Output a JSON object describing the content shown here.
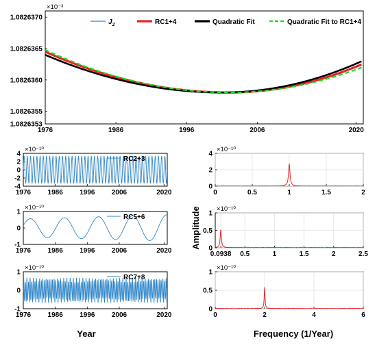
{
  "figure": {
    "xlabel": "Year",
    "xlabel_right": "Frequency (1/Year)",
    "ylabel_right": "Amplitude"
  },
  "chart_data": [
    {
      "id": "top",
      "type": "line",
      "exponent": "×10⁻³",
      "x": [
        1976,
        2020.5
      ],
      "xlim": [
        1976,
        2021
      ],
      "ylim": [
        1.0826353,
        1.0826371
      ],
      "xticks": [
        1976,
        1986,
        1996,
        2006,
        2020
      ],
      "yticks": [
        1.0826353,
        1.0826355,
        1.082636,
        1.0826365,
        1.082637
      ],
      "yticklabels": [
        "1.0826353",
        "1.0826355",
        "1.0826360",
        "1.0826365",
        "1.0826370"
      ],
      "legend": {
        "position": "top",
        "labels": [
          "J",
          "RC1+4",
          "Quadratic Fit",
          "Quadratic Fit to RC1+4"
        ],
        "j_sub": "2"
      },
      "series": [
        {
          "name": "J2",
          "color": "#2f86c8",
          "model": {
            "vertex_x": 2002,
            "min": 1.0826358,
            "a": 4.5e-10,
            "annual_amp": 2.3e-07,
            "noise_amp": 1e-07,
            "x_range": [
              1976,
              2020.8
            ]
          }
        },
        {
          "name": "RC1+4",
          "color": "#e8242b",
          "model": {
            "y0": 1.08263645,
            "vertex_x": 2002,
            "min": 1.0826358,
            "y1": 1.08263625,
            "x_range": [
              1976,
              2020.8
            ]
          }
        },
        {
          "name": "Quadratic Fit",
          "color": "#000000",
          "model": {
            "y0": 1.0826364,
            "vertex_x": 2001,
            "min": 1.0826358,
            "y1": 1.0826363,
            "x_range": [
              1976,
              2020.8
            ]
          }
        },
        {
          "name": "Quadratic Fit to RC1+4",
          "color": "#22dd22",
          "model": {
            "y0": 1.08263648,
            "vertex_x": 2002,
            "min": 1.0826358,
            "y1": 1.0826362,
            "x_range": [
              1976,
              2020.8
            ]
          }
        }
      ]
    },
    {
      "id": "rc23",
      "type": "line",
      "exponent": "×10⁻¹⁰",
      "xlim": [
        1976,
        2021
      ],
      "ylim": [
        -4,
        4
      ],
      "xticks": [
        1976,
        1986,
        1996,
        2006,
        2020
      ],
      "yticks": [
        4,
        2,
        0,
        -2,
        -4
      ],
      "legend": {
        "position": "top-right",
        "labels": [
          "RC2+3"
        ]
      },
      "series": [
        {
          "name": "RC2+3",
          "color": "#2f86c8",
          "model": {
            "amplitude": 3.3,
            "period_years": 1.0
          }
        }
      ]
    },
    {
      "id": "rc56",
      "type": "line",
      "exponent": "×10⁻¹⁰",
      "xlim": [
        1976,
        2021
      ],
      "ylim": [
        -1,
        1
      ],
      "xticks": [
        1976,
        1986,
        1996,
        2006,
        2020
      ],
      "yticks": [
        1,
        0,
        -1
      ],
      "legend": {
        "position": "top-right",
        "labels": [
          "RC5+6"
        ]
      },
      "series": [
        {
          "name": "RC5+6",
          "color": "#2f86c8",
          "model": {
            "amplitude_start": 0.55,
            "amplitude_end": 0.8,
            "period_years": 10.66,
            "peak_x": 1999.5
          }
        }
      ]
    },
    {
      "id": "rc78",
      "type": "line",
      "exponent": "×10⁻¹⁰",
      "xlim": [
        1976,
        2021
      ],
      "ylim": [
        -1,
        1
      ],
      "xticks": [
        1976,
        1986,
        1996,
        2006,
        2020
      ],
      "yticks": [
        1,
        0,
        -1
      ],
      "legend": {
        "position": "top-right",
        "labels": [
          "RC7+8"
        ]
      },
      "series": [
        {
          "name": "RC7+8",
          "color": "#2f86c8",
          "model": {
            "amplitude": 0.55,
            "period_years": 0.5
          }
        }
      ]
    },
    {
      "id": "fft1",
      "type": "line",
      "exponent": "×10⁻¹⁰",
      "xlim": [
        0,
        2
      ],
      "ylim": [
        0,
        4
      ],
      "xticks": [
        0,
        0.5,
        1,
        1.5,
        2
      ],
      "yticks": [
        0,
        2,
        4
      ],
      "grid": true,
      "series": [
        {
          "name": "spectrum",
          "color": "#e8242b",
          "model": {
            "peak_x": 1.0,
            "peak_y": 2.7,
            "width": 0.012
          }
        }
      ]
    },
    {
      "id": "fft2",
      "type": "line",
      "exponent": "×10⁻¹⁰",
      "xlim": [
        0,
        2.5
      ],
      "ylim": [
        0,
        1
      ],
      "xticks": [
        0.0938,
        0.5,
        1,
        1.5,
        2,
        2.5
      ],
      "xticklabels": [
        "0.0938",
        "0.5",
        "1",
        "1.5",
        "2",
        "2.5"
      ],
      "yticks": [
        0,
        0.5,
        1
      ],
      "grid": true,
      "series": [
        {
          "name": "spectrum",
          "color": "#e8242b",
          "model": {
            "peak_x": 0.0938,
            "peak_y": 0.52,
            "width": 0.012
          }
        }
      ]
    },
    {
      "id": "fft3",
      "type": "line",
      "exponent": "×10⁻¹⁰",
      "xlim": [
        0,
        6
      ],
      "ylim": [
        0,
        1
      ],
      "xticks": [
        0,
        2,
        4,
        6
      ],
      "yticks": [
        0,
        0.5,
        1
      ],
      "grid": true,
      "series": [
        {
          "name": "spectrum",
          "color": "#e8242b",
          "model": {
            "peak_x": 2.0,
            "peak_y": 0.57,
            "width": 0.02
          }
        }
      ]
    }
  ]
}
